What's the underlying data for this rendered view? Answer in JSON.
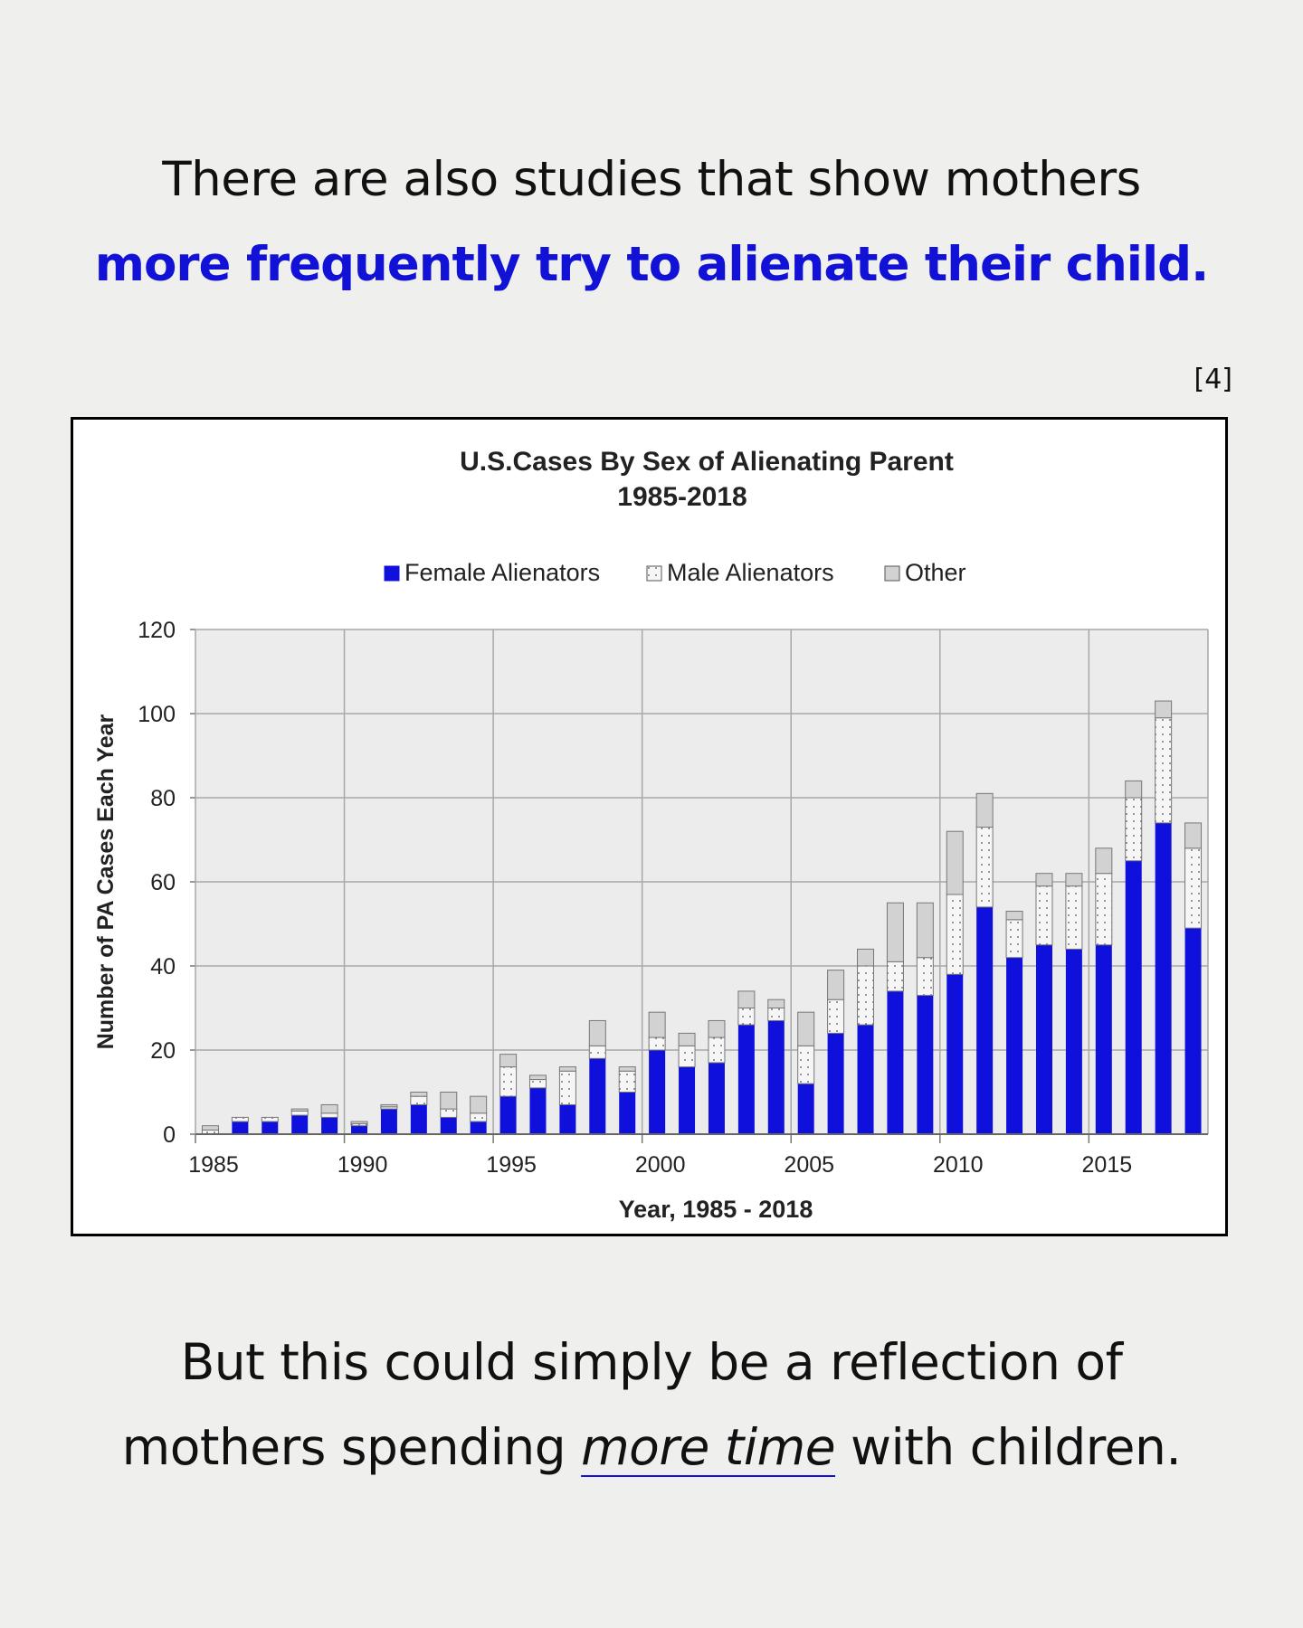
{
  "headline": {
    "line1": "There are also studies that show mothers",
    "line2": "more frequently try to alienate their child."
  },
  "citation": "[4]",
  "footer": {
    "line1": "But this could simply be a reflection of",
    "line2_pre": "mothers spending ",
    "line2_em": "more time",
    "line2_post": " with children."
  },
  "colors": {
    "accent": "#1212d6",
    "female": "#1010dd",
    "male": "#f6f6f6",
    "other": "#d2d2d2",
    "plot_bg": "#ececec",
    "grid": "#a8a8a8"
  },
  "chart_data": {
    "type": "bar",
    "stacked": true,
    "title_line1": "U.S.Cases By Sex of Alienating Parent",
    "title_line2": "1985-2018",
    "xlabel": "Year, 1985 - 2018",
    "ylabel": "Number of PA Cases Each Year",
    "ylim": [
      0,
      120
    ],
    "yticks": [
      0,
      20,
      40,
      60,
      80,
      100,
      120
    ],
    "xticks": [
      1985,
      1990,
      1995,
      2000,
      2005,
      2010,
      2015
    ],
    "xlim": [
      1984.5,
      2018.5
    ],
    "grid": true,
    "legend": [
      "Female Alienators",
      "Male Alienators",
      "Other"
    ],
    "categories": [
      1985,
      1986,
      1987,
      1988,
      1989,
      1990,
      1991,
      1992,
      1993,
      1994,
      1995,
      1996,
      1997,
      1998,
      1999,
      2000,
      2001,
      2002,
      2003,
      2004,
      2005,
      2006,
      2007,
      2008,
      2009,
      2010,
      2011,
      2012,
      2013,
      2014,
      2015,
      2016,
      2017,
      2018
    ],
    "series": [
      {
        "name": "Female Alienators",
        "values": [
          0,
          3,
          3,
          4.5,
          4,
          2,
          6,
          7,
          4,
          3,
          9,
          11,
          7,
          18,
          10,
          20,
          16,
          17,
          26,
          27,
          12,
          24,
          26,
          34,
          33,
          38,
          54,
          42,
          45,
          44,
          45,
          65,
          74,
          49
        ]
      },
      {
        "name": "Male Alienators",
        "values": [
          1,
          1,
          1,
          1,
          1,
          0.5,
          0.5,
          2,
          2,
          2,
          7,
          2,
          8,
          3,
          5,
          3,
          5,
          6,
          4,
          3,
          9,
          8,
          14,
          7,
          9,
          19,
          19,
          9,
          14,
          15,
          17,
          15,
          25,
          19
        ]
      },
      {
        "name": "Other",
        "values": [
          1,
          0,
          0,
          0.5,
          2,
          0.5,
          0.5,
          1,
          4,
          4,
          3,
          1,
          1,
          6,
          1,
          6,
          3,
          4,
          4,
          2,
          8,
          7,
          4,
          14,
          13,
          15,
          8,
          2,
          3,
          3,
          6,
          4,
          4,
          6
        ]
      }
    ]
  }
}
